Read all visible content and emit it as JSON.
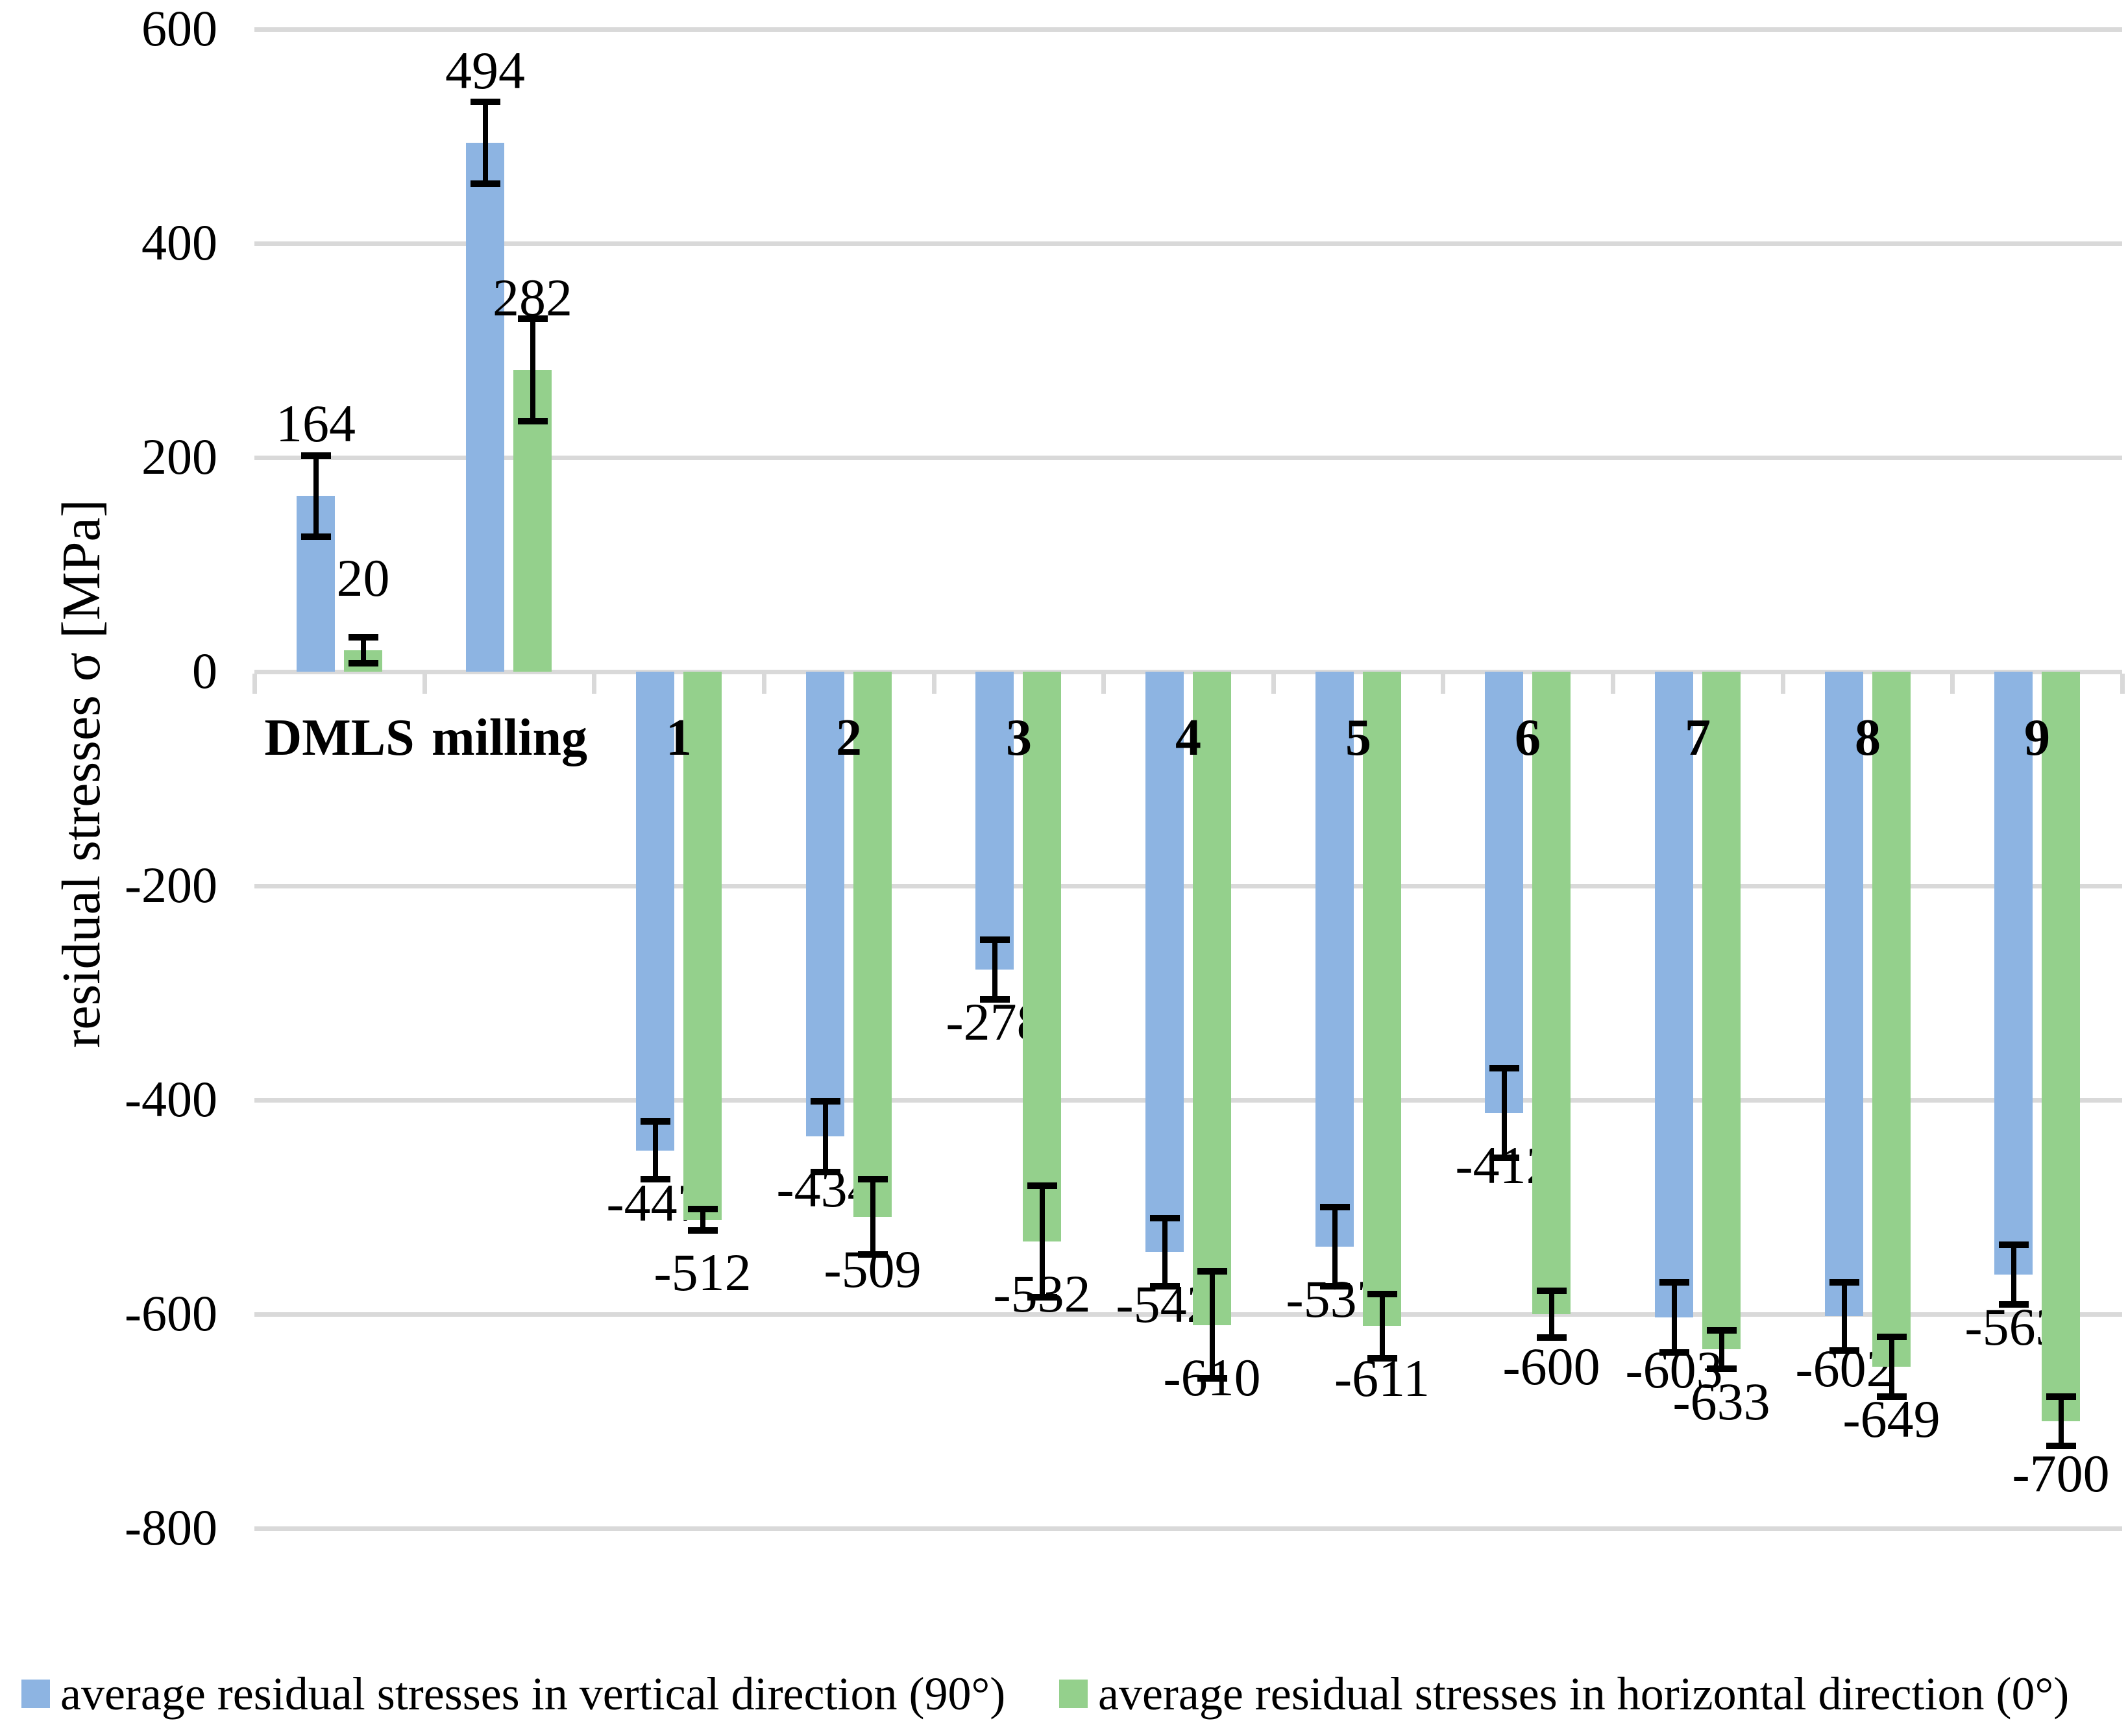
{
  "chart_data": {
    "type": "bar",
    "title": "",
    "ylabel": "residual stresses σ [MPa]",
    "xlabel": "",
    "ylim": [
      -800,
      600
    ],
    "ytick_interval": 200,
    "ytick_labels": [
      "600",
      "400",
      "200",
      "0",
      "-200",
      "-400",
      "-600",
      "-800"
    ],
    "grid": true,
    "gridline_color": "#D9D9D9",
    "error_bar_color": "#000000",
    "legend_position": "bottom",
    "categories": [
      "DMLS",
      "milling",
      "1",
      "2",
      "3",
      "4",
      "5",
      "6",
      "7",
      "8",
      "9"
    ],
    "series": [
      {
        "name": "average residual stresses in vertical direction (90°)",
        "color": "#8DB4E2",
        "values": [
          164,
          494,
          -447,
          -434,
          -278,
          -542,
          -537,
          -412,
          -603,
          -602,
          -563
        ],
        "errors": [
          38,
          38,
          27,
          33,
          28,
          32,
          37,
          42,
          33,
          32,
          28
        ],
        "data_labels": [
          "164",
          "494",
          "-447",
          "-434",
          "-278",
          "-542",
          "-537",
          "-412",
          "-603",
          "-602",
          "-563"
        ]
      },
      {
        "name": "average residual stresses in horizontal direction (0°)",
        "color": "#94D08C",
        "values": [
          20,
          282,
          -512,
          -509,
          -532,
          -610,
          -611,
          -600,
          -633,
          -649,
          -700
        ],
        "errors": [
          12,
          48,
          10,
          35,
          52,
          50,
          30,
          22,
          18,
          28,
          23
        ],
        "data_labels": [
          "20",
          "282",
          "-512",
          "-509",
          "-532",
          "-610",
          "-611",
          "-600",
          "-633",
          "-649",
          "-700"
        ]
      }
    ]
  }
}
